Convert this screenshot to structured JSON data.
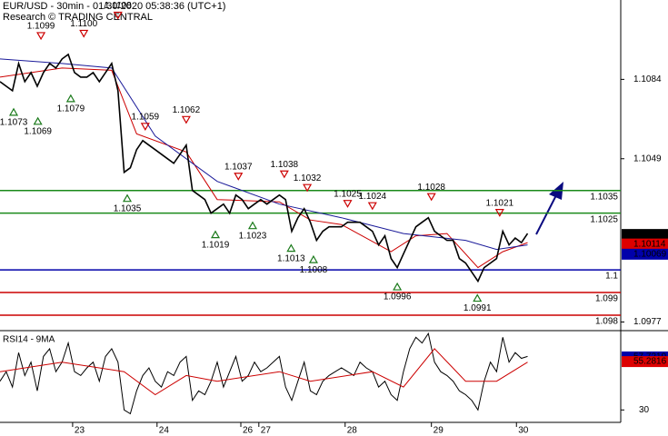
{
  "chart_data": {
    "type": "line",
    "title": "EUR/USD - 30min - 01/30/2020 05:38:36 (UTC+1)",
    "subtitle": "Research © TRADING CENTRAL",
    "x": [
      0,
      1,
      2,
      3,
      4,
      5,
      6,
      7,
      8,
      9,
      10,
      11,
      12,
      13,
      14,
      15,
      16,
      17,
      18,
      19,
      20,
      21,
      22,
      23,
      24,
      25,
      26,
      27,
      28,
      29,
      30,
      31,
      32,
      33,
      34,
      35,
      36,
      37,
      38,
      39,
      40,
      41,
      42,
      43,
      44,
      45,
      46,
      47,
      48,
      49,
      50,
      51,
      52,
      53,
      54,
      55,
      56,
      57,
      58,
      59,
      60,
      61,
      62,
      63,
      64,
      65,
      66,
      67,
      68,
      69,
      70,
      71,
      72,
      73,
      74,
      75,
      76,
      77,
      78,
      79,
      80,
      81,
      82,
      83,
      84,
      85
    ],
    "series": [
      {
        "name": "EUR/USD",
        "color": "#000000",
        "values": [
          1.1083,
          1.1081,
          1.1079,
          1.1091,
          1.1083,
          1.1087,
          1.1081,
          1.1087,
          1.1091,
          1.1089,
          1.1093,
          1.1095,
          1.1087,
          1.1085,
          1.1085,
          1.1087,
          1.1083,
          1.1087,
          1.1091,
          1.1079,
          1.1043,
          1.1045,
          1.1053,
          1.1057,
          1.1055,
          1.1053,
          1.1051,
          1.1049,
          1.1047,
          1.1051,
          1.1055,
          1.1035,
          1.1033,
          1.1031,
          1.1025,
          1.1027,
          1.1029,
          1.1025,
          1.1033,
          1.1031,
          1.1027,
          1.1029,
          1.1031,
          1.1029,
          1.1031,
          1.1033,
          1.1031,
          1.1017,
          1.1023,
          1.1027,
          1.1021,
          1.1013,
          1.1017,
          1.1019,
          1.1019,
          1.1019,
          1.1021,
          1.1021,
          1.1021,
          1.1019,
          1.1017,
          1.1011,
          1.1015,
          1.1005,
          1.1001,
          1.1007,
          1.1013,
          1.1019,
          1.1021,
          1.1023,
          1.1017,
          1.1015,
          1.1013,
          1.1013,
          1.1005,
          1.1003,
          1.0999,
          1.0995,
          1.1001,
          1.1003,
          1.1005,
          1.1017,
          1.1011,
          1.1014,
          1.1012,
          1.1016
        ]
      }
    ],
    "moving_averages": [
      {
        "color": "#cc0000",
        "x": [
          0,
          10,
          18,
          22,
          30,
          35,
          45,
          50,
          55,
          63,
          67,
          72,
          77,
          81,
          85
        ],
        "values": [
          1.1085,
          1.1089,
          1.1088,
          1.106,
          1.1052,
          1.1031,
          1.103,
          1.1022,
          1.102,
          1.1008,
          1.1015,
          1.1016,
          1.1001,
          1.1008,
          1.1012
        ]
      },
      {
        "color": "#1a1a99",
        "x": [
          0,
          10,
          18,
          25,
          35,
          45,
          55,
          65,
          75,
          80,
          85
        ],
        "values": [
          1.1093,
          1.1091,
          1.1089,
          1.1059,
          1.1039,
          1.1029,
          1.1023,
          1.1016,
          1.1013,
          1.1009,
          1.1011
        ]
      }
    ],
    "highs": [
      {
        "x": 6.6,
        "value": 1.1099,
        "label": "1.1099"
      },
      {
        "x": 13.5,
        "value": 1.11,
        "label": "1.1100"
      },
      {
        "x": 19,
        "value": 1.1108,
        "label": "1.1108"
      },
      {
        "x": 23.4,
        "value": 1.1059,
        "label": "1.1059"
      },
      {
        "x": 30,
        "value": 1.1062,
        "label": "1.1062"
      },
      {
        "x": 38.4,
        "value": 1.1037,
        "label": "1.1037"
      },
      {
        "x": 45.8,
        "value": 1.1038,
        "label": "1.1038"
      },
      {
        "x": 49.5,
        "value": 1.1032,
        "label": "1.1032"
      },
      {
        "x": 56,
        "value": 1.1025,
        "label": "1.1025"
      },
      {
        "x": 60,
        "value": 1.1024,
        "label": "1.1024"
      },
      {
        "x": 69.5,
        "value": 1.1028,
        "label": "1.1028"
      },
      {
        "x": 80.5,
        "value": 1.1021,
        "label": "1.1021"
      }
    ],
    "lows": [
      {
        "x": 2.2,
        "value": 1.1073,
        "label": "1.1073"
      },
      {
        "x": 6.1,
        "value": 1.1069,
        "label": "1.1069"
      },
      {
        "x": 11.4,
        "value": 1.1079,
        "label": "1.1079"
      },
      {
        "x": 20.5,
        "value": 1.1035,
        "label": "1.1035"
      },
      {
        "x": 34.7,
        "value": 1.1019,
        "label": "1.1019"
      },
      {
        "x": 40.7,
        "value": 1.1023,
        "label": "1.1023"
      },
      {
        "x": 46.9,
        "value": 1.1013,
        "label": "1.1013"
      },
      {
        "x": 50.5,
        "value": 1.1008,
        "label": "1.1008"
      },
      {
        "x": 64,
        "value": 1.0996,
        "label": "1.0996"
      },
      {
        "x": 76.9,
        "value": 1.0991,
        "label": "1.0991"
      }
    ],
    "levels": [
      {
        "value": 1.1035,
        "color": "#1a8a1a"
      },
      {
        "value": 1.1025,
        "color": "#1a8a1a"
      },
      {
        "value": 1.1,
        "color": "#0000aa"
      },
      {
        "value": 1.099,
        "color": "#cc0000"
      },
      {
        "value": 1.098,
        "color": "#cc0000"
      }
    ],
    "price_tags": [
      {
        "value": 1.10156,
        "color": "#000000"
      },
      {
        "value": 1.10114,
        "color": "#dd0000"
      },
      {
        "value": 1.10069,
        "color": "#0000aa"
      }
    ],
    "xlim": [
      0,
      100
    ],
    "xticks": [
      {
        "value": 11.7,
        "label": "23"
      },
      {
        "value": 25.3,
        "label": "24"
      },
      {
        "value": 38.8,
        "label": "26"
      },
      {
        "value": 41.7,
        "label": "27"
      },
      {
        "value": 55.6,
        "label": "28"
      },
      {
        "value": 69.5,
        "label": "29"
      },
      {
        "value": 83.2,
        "label": "30"
      }
    ],
    "ylim": [
      1.0974,
      1.1119
    ],
    "yticks": [
      1.1084,
      1.1049,
      1.0977
    ],
    "rsi": {
      "title": "RSI14 - 9MA",
      "series": [
        {
          "color": "#000000",
          "values": [
            45,
            50,
            42,
            60,
            48,
            55,
            40,
            58,
            62,
            50,
            55,
            65,
            50,
            48,
            52,
            55,
            45,
            58,
            62,
            55,
            30,
            28,
            40,
            48,
            52,
            45,
            42,
            50,
            48,
            55,
            58,
            35,
            40,
            38,
            45,
            55,
            42,
            50,
            58,
            45,
            48,
            55,
            50,
            52,
            55,
            58,
            42,
            35,
            45,
            55,
            40,
            38,
            45,
            48,
            50,
            52,
            50,
            48,
            55,
            52,
            50,
            42,
            45,
            38,
            35,
            50,
            62,
            68,
            65,
            70,
            55,
            50,
            48,
            45,
            40,
            38,
            35,
            30,
            45,
            55,
            50,
            68,
            55,
            60,
            57,
            58
          ]
        }
      ],
      "ma": {
        "color": "#cc0000",
        "x": [
          0,
          10,
          20,
          25,
          30,
          35,
          45,
          50,
          60,
          65,
          70,
          75,
          80,
          85
        ],
        "values": [
          50,
          55,
          50,
          38,
          48,
          45,
          50,
          45,
          50,
          42,
          62,
          45,
          45,
          55
        ]
      },
      "tags": [
        {
          "value": 57.7219,
          "color": "#0000aa"
        },
        {
          "value": 55.2816,
          "color": "#dd0000"
        }
      ],
      "ylim": [
        23.5,
        71
      ],
      "yticks": [
        30
      ]
    }
  }
}
